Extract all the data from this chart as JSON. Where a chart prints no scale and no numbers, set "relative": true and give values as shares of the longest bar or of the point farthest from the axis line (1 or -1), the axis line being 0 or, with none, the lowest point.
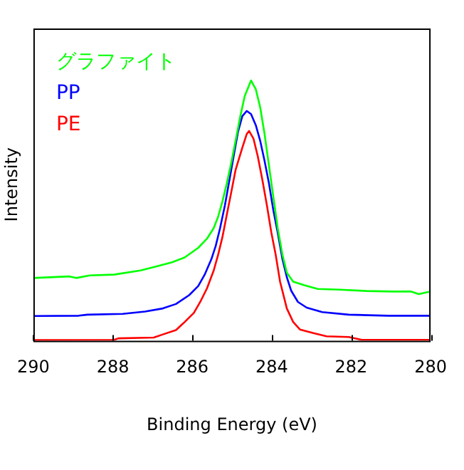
{
  "chart_data": {
    "type": "line",
    "xlabel": "Binding Energy (eV)",
    "ylabel": "Intensity",
    "relative": true,
    "xlim": [
      290,
      280
    ],
    "xticks": [
      290,
      288,
      286,
      284,
      282,
      280
    ],
    "grid": false,
    "legend": "top left",
    "marker": "none",
    "line_style": "solid",
    "series": [
      {
        "name": "グラファイト",
        "color": "#00ff00",
        "x": [
          290,
          289.09,
          288.92,
          288.58,
          287.97,
          287.3,
          286.86,
          286.52,
          286.19,
          285.85,
          285.63,
          285.46,
          285.35,
          285.24,
          285.13,
          285.02,
          284.91,
          284.79,
          284.68,
          284.52,
          284.4,
          284.29,
          284.18,
          284.07,
          283.96,
          283.85,
          283.73,
          283.62,
          283.46,
          283.18,
          282.84,
          282.29,
          281.62,
          280.95,
          280.5,
          280.3,
          280
        ],
        "values": [
          0.241,
          0.247,
          0.241,
          0.251,
          0.254,
          0.27,
          0.287,
          0.301,
          0.32,
          0.357,
          0.392,
          0.433,
          0.476,
          0.536,
          0.605,
          0.682,
          0.768,
          0.863,
          0.94,
          1,
          0.966,
          0.897,
          0.794,
          0.674,
          0.553,
          0.433,
          0.33,
          0.261,
          0.227,
          0.213,
          0.199,
          0.196,
          0.191,
          0.189,
          0.189,
          0.179,
          0.189
        ]
      },
      {
        "name": "PP",
        "color": "#0000ff",
        "x": [
          290,
          288.86,
          288.64,
          287.75,
          287.19,
          286.74,
          286.41,
          286.08,
          285.85,
          285.69,
          285.52,
          285.41,
          285.3,
          285.18,
          285.07,
          284.96,
          284.85,
          284.74,
          284.63,
          284.52,
          284.4,
          284.29,
          284.18,
          284.07,
          283.96,
          283.85,
          283.73,
          283.62,
          283.51,
          283.34,
          283.12,
          282.73,
          282.06,
          281.06,
          280
        ],
        "values": [
          0.095,
          0.096,
          0.1,
          0.103,
          0.112,
          0.124,
          0.141,
          0.175,
          0.21,
          0.253,
          0.313,
          0.364,
          0.433,
          0.519,
          0.613,
          0.708,
          0.802,
          0.863,
          0.883,
          0.871,
          0.828,
          0.768,
          0.691,
          0.605,
          0.502,
          0.416,
          0.313,
          0.244,
          0.192,
          0.149,
          0.127,
          0.11,
          0.1,
          0.096,
          0.096
        ]
      },
      {
        "name": "PE",
        "color": "#ff0000",
        "x": [
          290,
          287.97,
          287.86,
          286.97,
          286.74,
          286.41,
          286.19,
          285.96,
          285.8,
          285.63,
          285.46,
          285.35,
          285.24,
          285.13,
          285.02,
          284.91,
          284.74,
          284.63,
          284.57,
          284.46,
          284.35,
          284.24,
          284.12,
          284.01,
          283.9,
          283.79,
          283.62,
          283.46,
          283.29,
          282.95,
          282.62,
          282.06,
          281.73,
          280
        ],
        "values": [
          0.002,
          0.003,
          0.009,
          0.012,
          0.024,
          0.041,
          0.072,
          0.107,
          0.149,
          0.201,
          0.27,
          0.33,
          0.399,
          0.485,
          0.57,
          0.656,
          0.742,
          0.794,
          0.806,
          0.777,
          0.708,
          0.622,
          0.519,
          0.416,
          0.33,
          0.227,
          0.124,
          0.072,
          0.043,
          0.029,
          0.017,
          0.014,
          0.003,
          0.003
        ]
      }
    ]
  }
}
